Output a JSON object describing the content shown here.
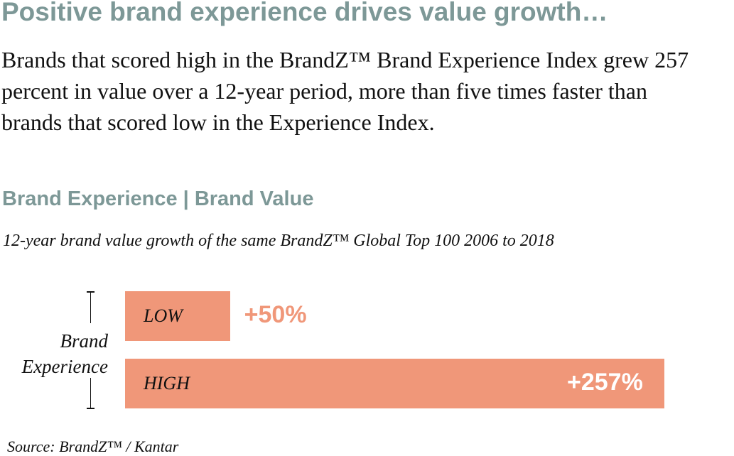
{
  "chart_data": {
    "type": "bar",
    "title": "Positive brand experience drives value growth…",
    "description": "Brands that scored high in the BrandZ™ Brand Experience Index grew 257 percent in value over a 12-year period, more than five times faster than brands that scored low in the Experience Index.",
    "heading": "Brand Experience | Brand Value",
    "subtitle": "12-year brand value growth of the same BrandZ™ Global Top 100 2006 to 2018",
    "y_label": "Brand Experience",
    "categories": [
      "LOW",
      "HIGH"
    ],
    "values": [
      50,
      257
    ],
    "value_labels": [
      "+50%",
      "+257%"
    ],
    "color": "#f09779",
    "source": "Source: BrandZ™ / Kantar"
  }
}
